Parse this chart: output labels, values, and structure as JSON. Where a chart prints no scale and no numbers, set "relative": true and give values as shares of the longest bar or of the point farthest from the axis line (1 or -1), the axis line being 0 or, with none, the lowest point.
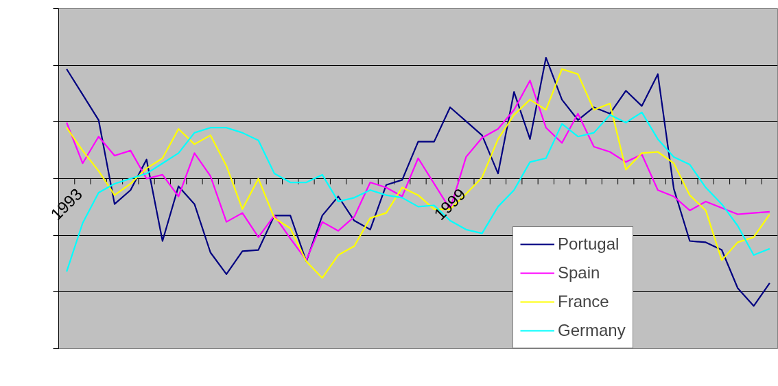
{
  "chart_data": {
    "type": "line",
    "relative": true,
    "grid": "y",
    "legend": "bottom right",
    "tick_labels": "x",
    "categories": [
      "1993",
      null,
      null,
      null,
      null,
      null,
      null,
      null,
      null,
      null,
      null,
      null,
      null,
      null,
      null,
      null,
      null,
      null,
      null,
      null,
      null,
      null,
      null,
      null,
      "1999",
      null,
      null,
      null,
      null,
      null,
      null,
      null,
      null,
      null,
      null,
      null,
      null,
      null,
      null,
      null,
      null,
      null,
      null,
      null,
      null
    ],
    "series": [
      {
        "name": "Portugal",
        "color": "#000080",
        "values": [
          0.86,
          0.66,
          0.46,
          -0.2,
          -0.09,
          0.15,
          -0.49,
          -0.06,
          -0.2,
          -0.58,
          -0.75,
          -0.57,
          -0.56,
          -0.29,
          -0.29,
          -0.65,
          -0.29,
          -0.14,
          -0.33,
          -0.4,
          -0.05,
          -0.01,
          0.29,
          0.29,
          0.56,
          0.45,
          0.34,
          0.04,
          0.68,
          0.31,
          0.95,
          0.62,
          0.46,
          0.56,
          0.51,
          0.69,
          0.57,
          0.82,
          -0.08,
          -0.49,
          -0.5,
          -0.56,
          -0.86,
          -1,
          -0.82
        ]
      },
      {
        "name": "Spain",
        "color": "#ff00ff",
        "values": [
          0.44,
          0.12,
          0.33,
          0.18,
          0.22,
          0,
          0.03,
          -0.14,
          0.2,
          0.02,
          -0.34,
          -0.27,
          -0.46,
          -0.29,
          -0.47,
          -0.64,
          -0.34,
          -0.41,
          -0.3,
          -0.03,
          -0.07,
          -0.14,
          0.16,
          -0.04,
          -0.24,
          0.17,
          0.32,
          0.39,
          0.54,
          0.77,
          0.4,
          0.28,
          0.51,
          0.25,
          0.21,
          0.13,
          0.19,
          -0.09,
          -0.14,
          -0.25,
          -0.18,
          -0.23,
          -0.28,
          -0.27,
          -0.26
        ]
      },
      {
        "name": "France",
        "color": "#ffff00",
        "values": [
          0.4,
          0.22,
          0.06,
          -0.13,
          -0.04,
          0.08,
          0.16,
          0.39,
          0.27,
          0.34,
          0.1,
          -0.24,
          0,
          -0.31,
          -0.39,
          -0.65,
          -0.78,
          -0.6,
          -0.53,
          -0.31,
          -0.27,
          -0.07,
          -0.13,
          -0.24,
          -0.24,
          -0.12,
          0.01,
          0.31,
          0.5,
          0.62,
          0.54,
          0.86,
          0.82,
          0.54,
          0.59,
          0.07,
          0.2,
          0.21,
          0.12,
          -0.13,
          -0.25,
          -0.64,
          -0.5,
          -0.46,
          -0.28
        ]
      },
      {
        "name": "Germany",
        "color": "#00ffff",
        "values": [
          -0.73,
          -0.35,
          -0.11,
          -0.04,
          0,
          0.04,
          0.12,
          0.2,
          0.36,
          0.4,
          0.4,
          0.36,
          0.3,
          0.04,
          -0.03,
          -0.03,
          0.03,
          -0.18,
          -0.15,
          -0.09,
          -0.13,
          -0.15,
          -0.22,
          -0.21,
          -0.33,
          -0.4,
          -0.43,
          -0.22,
          -0.09,
          0.13,
          0.16,
          0.43,
          0.33,
          0.36,
          0.5,
          0.44,
          0.52,
          0.31,
          0.17,
          0.11,
          -0.07,
          -0.2,
          -0.37,
          -0.6,
          -0.55
        ]
      }
    ]
  }
}
